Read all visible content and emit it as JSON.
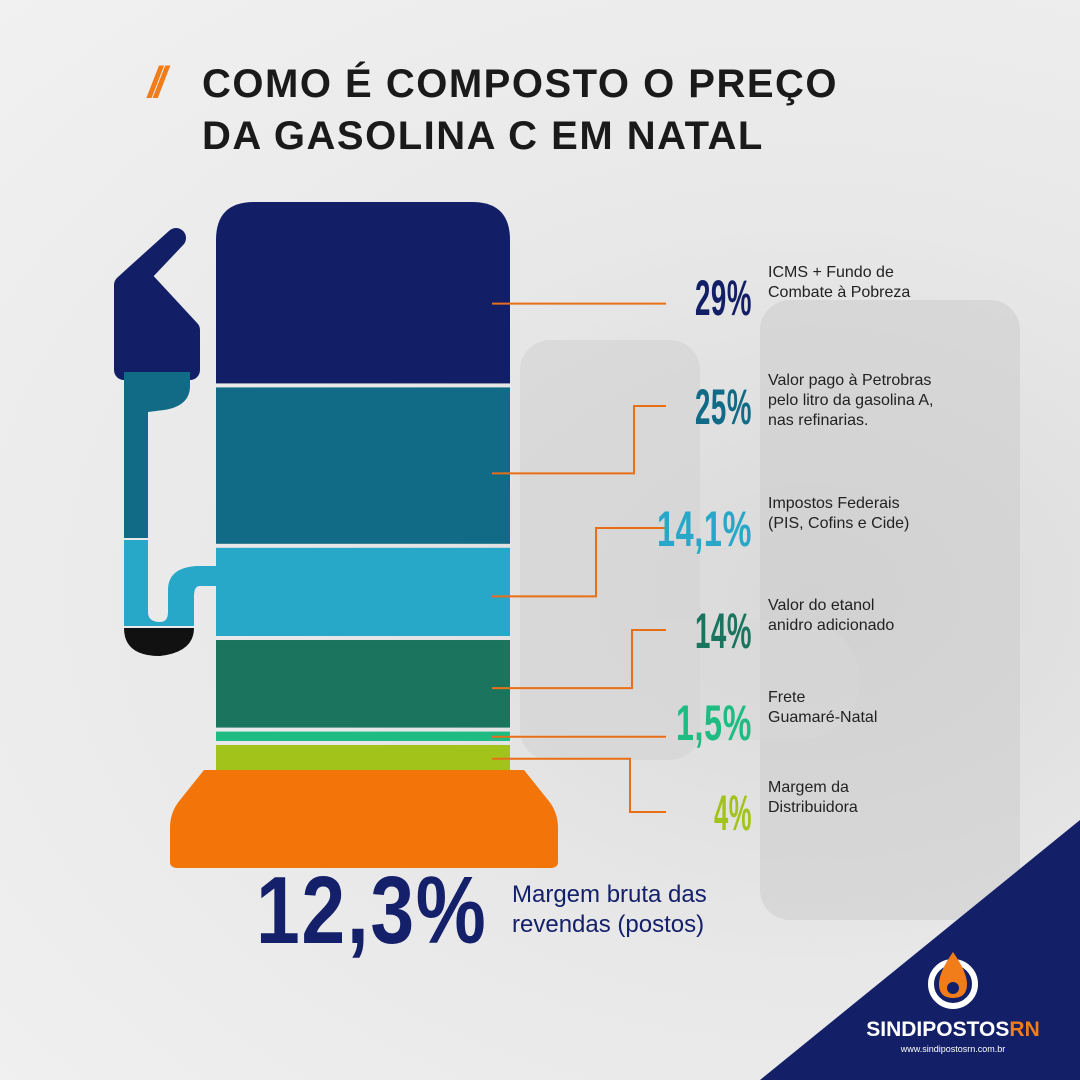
{
  "title": {
    "slashes": "//",
    "line1": "COMO É COMPOSTO O PREÇO",
    "line2": "DA GASOLINA C EM NATAL"
  },
  "chart_data": {
    "type": "bar",
    "stacked": true,
    "unit": "%",
    "segments": [
      {
        "value": 29,
        "label": "29%",
        "text": [
          "ICMS + Fundo de",
          "Combate à Pobreza"
        ],
        "color": "#121f66"
      },
      {
        "value": 25,
        "label": "25%",
        "text": [
          "Valor pago à Petrobras",
          "pelo litro da gasolina A,",
          "nas refinarias."
        ],
        "color": "#116b87"
      },
      {
        "value": 14.1,
        "label": "14,1%",
        "text": [
          "Impostos Federais",
          "(PIS, Cofins e Cide)"
        ],
        "color": "#28a8c9"
      },
      {
        "value": 14,
        "label": "14%",
        "text": [
          "Valor do etanol",
          "anidro adicionado"
        ],
        "color": "#1b745e"
      },
      {
        "value": 1.5,
        "label": "1,5%",
        "text": [
          "Frete",
          "Guamaré-Natal"
        ],
        "color": "#1ebc82"
      },
      {
        "value": 4,
        "label": "4%",
        "text": [
          "Margem da",
          "Distribuidora"
        ],
        "color": "#a1c31a"
      },
      {
        "value": 12.3,
        "label": "12,3%",
        "text": [
          "Margem bruta das",
          "revendas (postos)"
        ],
        "color": "#f37408"
      }
    ]
  },
  "marginBase": {
    "value": "12,3%",
    "label_line1": "Margem bruta das",
    "label_line2": "revendas (postos)"
  },
  "brand": {
    "name_main": "SINDIPOSTOS",
    "name_suffix": "RN",
    "url": "www.sindipostosrn.com.br",
    "icon": "flame-drop-icon",
    "color_navy": "#132067",
    "color_orange": "#f07c1a"
  }
}
